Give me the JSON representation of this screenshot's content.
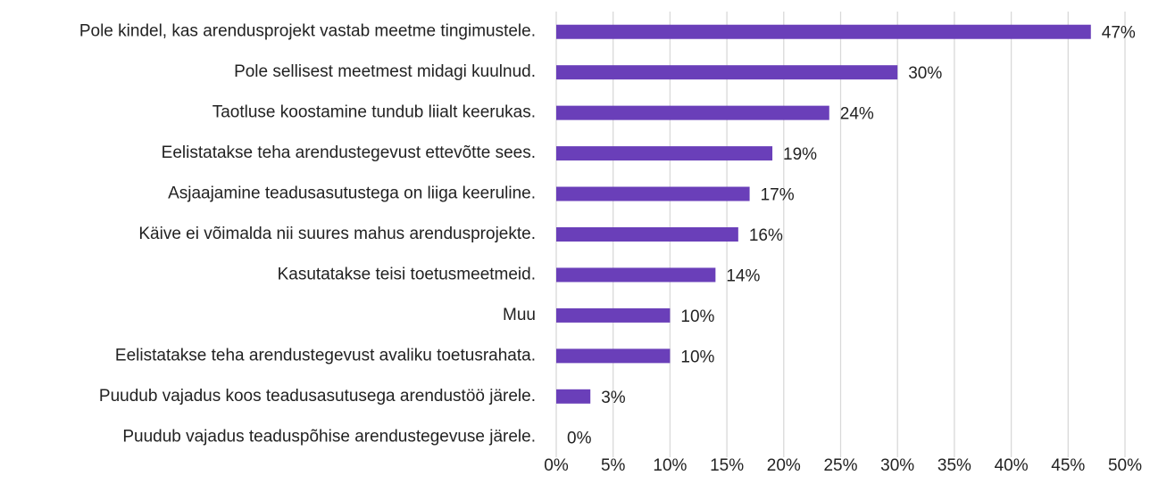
{
  "chart_data": {
    "type": "bar",
    "orientation": "horizontal",
    "categories": [
      "Pole kindel, kas arendusprojekt vastab meetme tingimustele.",
      "Pole sellisest meetmest midagi kuulnud.",
      "Taotluse koostamine tundub liialt keerukas.",
      "Eelistatakse teha arendustegevust ettevõtte sees.",
      "Asjaajamine teadusasutustega on liiga keeruline.",
      "Käive ei võimalda nii suures mahus arendusprojekte.",
      "Kasutatakse teisi toetusmeetmeid.",
      "Muu",
      "Eelistatakse teha arendustegevust avaliku toetusrahata.",
      "Puudub vajadus koos teadusasutusega arendustöö järele.",
      "Puudub vajadus teaduspõhise arendustegevuse järele."
    ],
    "values": [
      47,
      30,
      24,
      19,
      17,
      16,
      14,
      10,
      10,
      3,
      0
    ],
    "value_labels": [
      "47%",
      "30%",
      "24%",
      "19%",
      "17%",
      "16%",
      "14%",
      "10%",
      "10%",
      "3%",
      "0%"
    ],
    "color": "#6a3fb9",
    "xlim": [
      0,
      50
    ],
    "xticks": [
      {
        "value": 0,
        "label": "0%"
      },
      {
        "value": 5,
        "label": "5%"
      },
      {
        "value": 10,
        "label": "10%"
      },
      {
        "value": 15,
        "label": "15%"
      },
      {
        "value": 20,
        "label": "20%"
      },
      {
        "value": 25,
        "label": "25%"
      },
      {
        "value": 30,
        "label": "30%"
      },
      {
        "value": 35,
        "label": "35%"
      },
      {
        "value": 40,
        "label": "40%"
      },
      {
        "value": 45,
        "label": "45%"
      },
      {
        "value": 50,
        "label": "50%"
      }
    ],
    "grid": true
  }
}
